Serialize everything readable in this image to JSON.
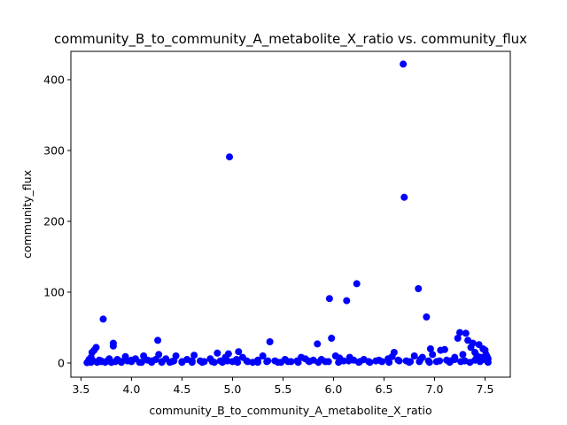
{
  "chart_data": {
    "type": "scatter",
    "title": "community_B_to_community_A_metabolite_X_ratio vs. community_flux",
    "xlabel": "community_B_to_community_A_metabolite_X_ratio",
    "ylabel": "community_flux",
    "xlim": [
      3.4,
      7.75
    ],
    "ylim": [
      -20,
      440
    ],
    "xticks": [
      "3.5",
      "4.0",
      "4.5",
      "5.0",
      "5.5",
      "6.0",
      "6.5",
      "7.0",
      "7.5"
    ],
    "yticks": [
      "0",
      "100",
      "200",
      "300",
      "400"
    ],
    "grid": false,
    "marker_color": "#0000ff",
    "background": "#ffffff",
    "series": [
      {
        "points": [
          [
            3.56,
            0.5
          ],
          [
            3.57,
            2
          ],
          [
            3.58,
            5
          ],
          [
            3.6,
            1
          ],
          [
            3.6,
            8
          ],
          [
            3.61,
            15
          ],
          [
            3.62,
            3
          ],
          [
            3.63,
            18
          ],
          [
            3.65,
            22
          ],
          [
            3.66,
            1
          ],
          [
            3.68,
            4
          ],
          [
            3.7,
            2
          ],
          [
            3.72,
            62
          ],
          [
            3.74,
            1
          ],
          [
            3.76,
            3
          ],
          [
            3.78,
            6
          ],
          [
            3.8,
            1
          ],
          [
            3.82,
            28
          ],
          [
            3.82,
            24
          ],
          [
            3.84,
            2
          ],
          [
            3.86,
            5
          ],
          [
            3.9,
            1
          ],
          [
            3.94,
            9
          ],
          [
            3.96,
            3
          ],
          [
            4.0,
            2
          ],
          [
            4.04,
            6
          ],
          [
            4.08,
            1
          ],
          [
            4.12,
            10
          ],
          [
            4.16,
            4
          ],
          [
            4.2,
            1
          ],
          [
            4.24,
            5
          ],
          [
            4.26,
            32
          ],
          [
            4.27,
            12
          ],
          [
            4.3,
            2
          ],
          [
            4.34,
            6
          ],
          [
            4.38,
            1
          ],
          [
            4.42,
            3
          ],
          [
            4.44,
            10
          ],
          [
            4.5,
            2
          ],
          [
            4.55,
            5
          ],
          [
            4.6,
            1
          ],
          [
            4.62,
            11
          ],
          [
            4.68,
            3
          ],
          [
            4.72,
            2
          ],
          [
            4.78,
            6
          ],
          [
            4.82,
            1
          ],
          [
            4.85,
            14
          ],
          [
            4.88,
            3
          ],
          [
            4.93,
            8
          ],
          [
            4.96,
            13
          ],
          [
            4.97,
            291
          ],
          [
            5.0,
            2
          ],
          [
            5.04,
            5
          ],
          [
            5.06,
            16
          ],
          [
            5.1,
            8
          ],
          [
            5.14,
            3
          ],
          [
            5.2,
            1
          ],
          [
            5.25,
            4
          ],
          [
            5.3,
            10
          ],
          [
            5.34,
            2
          ],
          [
            5.37,
            30
          ],
          [
            5.42,
            3
          ],
          [
            5.48,
            1
          ],
          [
            5.52,
            5
          ],
          [
            5.58,
            2
          ],
          [
            5.64,
            3
          ],
          [
            5.68,
            8
          ],
          [
            5.72,
            6
          ],
          [
            5.76,
            2
          ],
          [
            5.8,
            4
          ],
          [
            5.84,
            27
          ],
          [
            5.88,
            5
          ],
          [
            5.92,
            2
          ],
          [
            5.96,
            91
          ],
          [
            5.98,
            35
          ],
          [
            6.02,
            10
          ],
          [
            6.06,
            7
          ],
          [
            6.1,
            3
          ],
          [
            6.13,
            88
          ],
          [
            6.16,
            8
          ],
          [
            6.2,
            4
          ],
          [
            6.23,
            112
          ],
          [
            6.26,
            2
          ],
          [
            6.3,
            5
          ],
          [
            6.36,
            1
          ],
          [
            6.42,
            3
          ],
          [
            6.48,
            2
          ],
          [
            6.54,
            6
          ],
          [
            6.58,
            9
          ],
          [
            6.6,
            15
          ],
          [
            6.64,
            4
          ],
          [
            6.69,
            422
          ],
          [
            6.7,
            234
          ],
          [
            6.72,
            3
          ],
          [
            6.76,
            2
          ],
          [
            6.8,
            10
          ],
          [
            6.84,
            105
          ],
          [
            6.86,
            5
          ],
          [
            6.88,
            8
          ],
          [
            6.92,
            65
          ],
          [
            6.94,
            3
          ],
          [
            6.96,
            20
          ],
          [
            6.98,
            12
          ],
          [
            7.02,
            2
          ],
          [
            7.06,
            18
          ],
          [
            7.1,
            19
          ],
          [
            7.12,
            4
          ],
          [
            7.16,
            3
          ],
          [
            7.2,
            8
          ],
          [
            7.23,
            35
          ],
          [
            7.25,
            43
          ],
          [
            7.28,
            12
          ],
          [
            7.31,
            42
          ],
          [
            7.33,
            32
          ],
          [
            7.36,
            22
          ],
          [
            7.38,
            28
          ],
          [
            7.4,
            15
          ],
          [
            7.42,
            10
          ],
          [
            7.44,
            26
          ],
          [
            7.46,
            8
          ],
          [
            7.48,
            20
          ],
          [
            7.5,
            18
          ],
          [
            7.5,
            5
          ],
          [
            7.51,
            12
          ],
          [
            7.52,
            3
          ],
          [
            7.52,
            9
          ],
          [
            7.53,
            1
          ],
          [
            7.53,
            6
          ],
          [
            7.45,
            2
          ],
          [
            7.4,
            4
          ],
          [
            7.35,
            1
          ],
          [
            7.3,
            3
          ],
          [
            7.26,
            2
          ],
          [
            7.2,
            5
          ],
          [
            7.15,
            1
          ],
          [
            7.05,
            3
          ],
          [
            6.95,
            1
          ],
          [
            6.85,
            2
          ],
          [
            6.75,
            1
          ],
          [
            6.65,
            3
          ],
          [
            6.55,
            1
          ],
          [
            6.45,
            4
          ],
          [
            6.35,
            2
          ],
          [
            6.25,
            1
          ],
          [
            6.15,
            3
          ],
          [
            6.05,
            1
          ],
          [
            5.95,
            2
          ],
          [
            5.85,
            1
          ],
          [
            5.75,
            3
          ],
          [
            5.65,
            1
          ],
          [
            5.55,
            2
          ],
          [
            5.45,
            1
          ],
          [
            5.35,
            3
          ],
          [
            5.25,
            1
          ],
          [
            5.15,
            2
          ],
          [
            5.05,
            1
          ],
          [
            4.95,
            3
          ],
          [
            4.9,
            1
          ],
          [
            4.8,
            2
          ],
          [
            4.7,
            1
          ],
          [
            4.6,
            3
          ],
          [
            4.5,
            1
          ],
          [
            4.4,
            2
          ],
          [
            4.3,
            1
          ],
          [
            4.2,
            3
          ],
          [
            4.1,
            1
          ],
          [
            4.0,
            4
          ],
          [
            3.9,
            2
          ],
          [
            3.8,
            1
          ],
          [
            3.7,
            3
          ]
        ]
      }
    ]
  }
}
